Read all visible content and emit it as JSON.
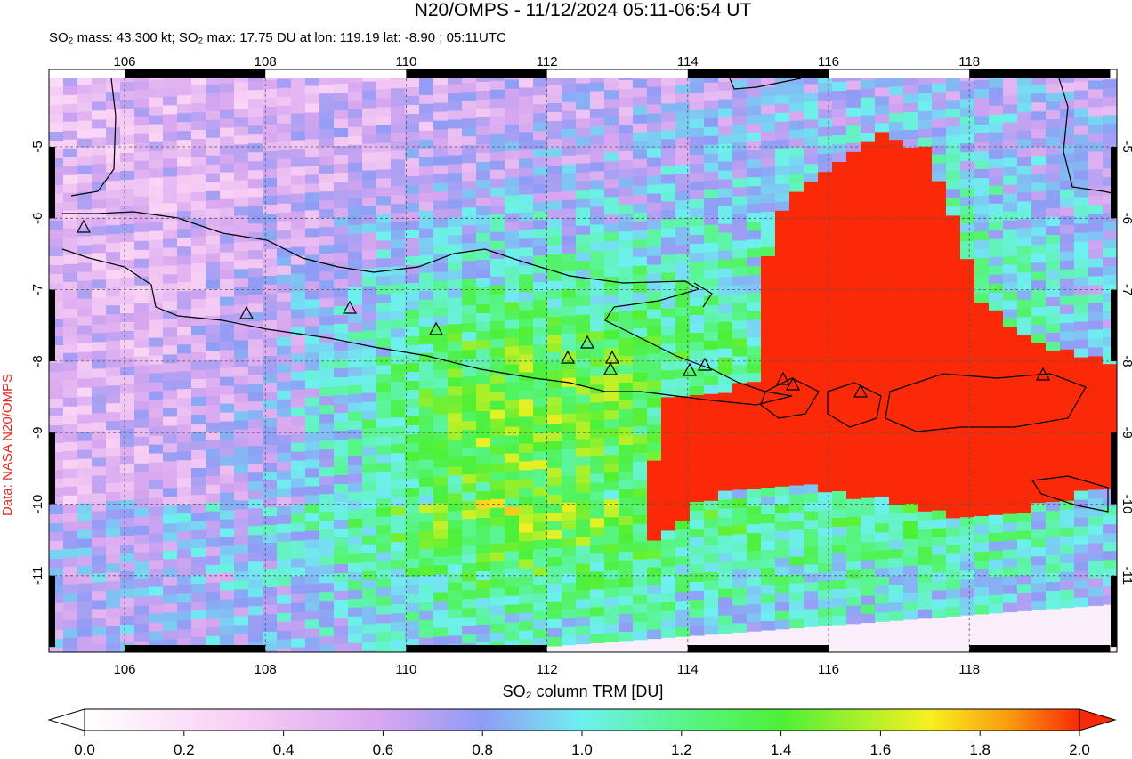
{
  "header": {
    "title": "N20/OMPS - 11/12/2024 05:11-06:54 UT",
    "subtitle": "SO₂ mass: 43.300 kt; SO₂ max: 17.75 DU at lon: 119.19 lat: -8.90 ; 05:11UTC"
  },
  "map": {
    "lon_ticks": [
      106,
      108,
      110,
      112,
      114,
      116,
      118
    ],
    "lat_ticks": [
      -5,
      -6,
      -7,
      -8,
      -9,
      -10,
      -11
    ],
    "credit": "Data: NASA N20/OMPS"
  },
  "colorbar": {
    "label": "SO₂ column TRM [DU]",
    "ticks": [
      {
        "value": 0,
        "label": "0.0"
      },
      {
        "value": 0.2,
        "label": "0.2"
      },
      {
        "value": 0.4,
        "label": "0.4"
      },
      {
        "value": 0.6,
        "label": "0.6"
      },
      {
        "value": 0.8,
        "label": "0.8"
      },
      {
        "value": 1,
        "label": "1.0"
      },
      {
        "value": 1.2,
        "label": "1.2"
      },
      {
        "value": 1.4,
        "label": "1.4"
      },
      {
        "value": 1.6,
        "label": "1.6"
      },
      {
        "value": 1.8,
        "label": "1.8"
      },
      {
        "value": 2,
        "label": "2.0"
      }
    ]
  }
}
